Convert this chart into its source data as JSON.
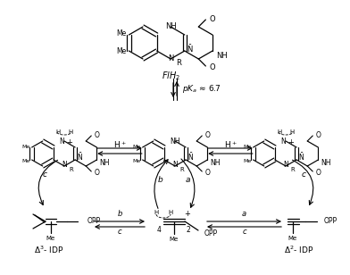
{
  "bg_color": "#ffffff",
  "flh2_label": "FlH$_2$",
  "pka_label": "$pK_a$ ≈ 6.7",
  "delta3_label": "$\\Delta^3$- IDP",
  "delta2_label": "$\\Delta^2$- IDP",
  "figsize": [
    3.92,
    3.08
  ],
  "dpi": 100
}
